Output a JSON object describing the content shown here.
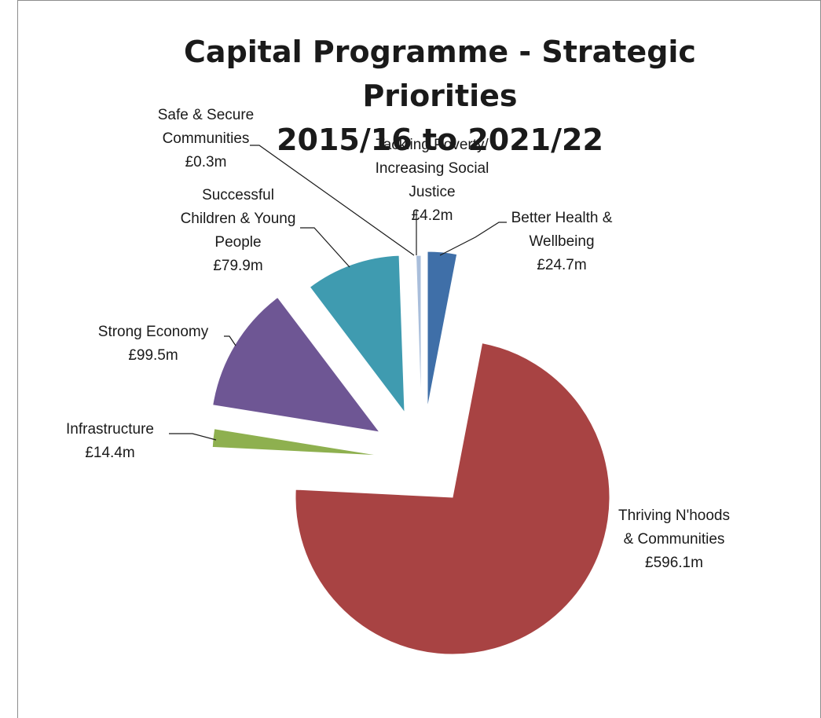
{
  "chart_data": {
    "type": "pie",
    "title_lines": [
      "Capital Programme - Strategic Priorities",
      "2015/16 to 2021/22"
    ],
    "unit": "£m",
    "slices": [
      {
        "name": "Better Health & Wellbeing",
        "label_lines": [
          "Better Health &",
          "Wellbeing"
        ],
        "value_label": "£24.7m",
        "value": 24.7,
        "color": "#3f6fa8"
      },
      {
        "name": "Thriving N'hoods & Communities",
        "label_lines": [
          "Thriving N'hoods",
          "& Communities"
        ],
        "value_label": "£596.1m",
        "value": 596.1,
        "color": "#a84343"
      },
      {
        "name": "Infrastructure",
        "label_lines": [
          "Infrastructure"
        ],
        "value_label": "£14.4m",
        "value": 14.4,
        "color": "#8eb04f"
      },
      {
        "name": "Strong Economy",
        "label_lines": [
          "Strong Economy"
        ],
        "value_label": "£99.5m",
        "value": 99.5,
        "color": "#6e5694"
      },
      {
        "name": "Successful Children & Young People",
        "label_lines": [
          "Successful",
          "Children & Young",
          "People"
        ],
        "value_label": "£79.9m",
        "value": 79.9,
        "color": "#3f9bb0"
      },
      {
        "name": "Safe & Secure Communities",
        "label_lines": [
          "Safe & Secure",
          "Communities"
        ],
        "value_label": "£0.3m",
        "value": 0.3,
        "color": "#c7cedf"
      },
      {
        "name": "Tackling Poverty/ Increasing Social Justice",
        "label_lines": [
          "Tackling Poverty/",
          "Increasing Social",
          "Justice"
        ],
        "value_label": "£4.2m",
        "value": 4.2,
        "color": "#a9bedb"
      }
    ]
  }
}
